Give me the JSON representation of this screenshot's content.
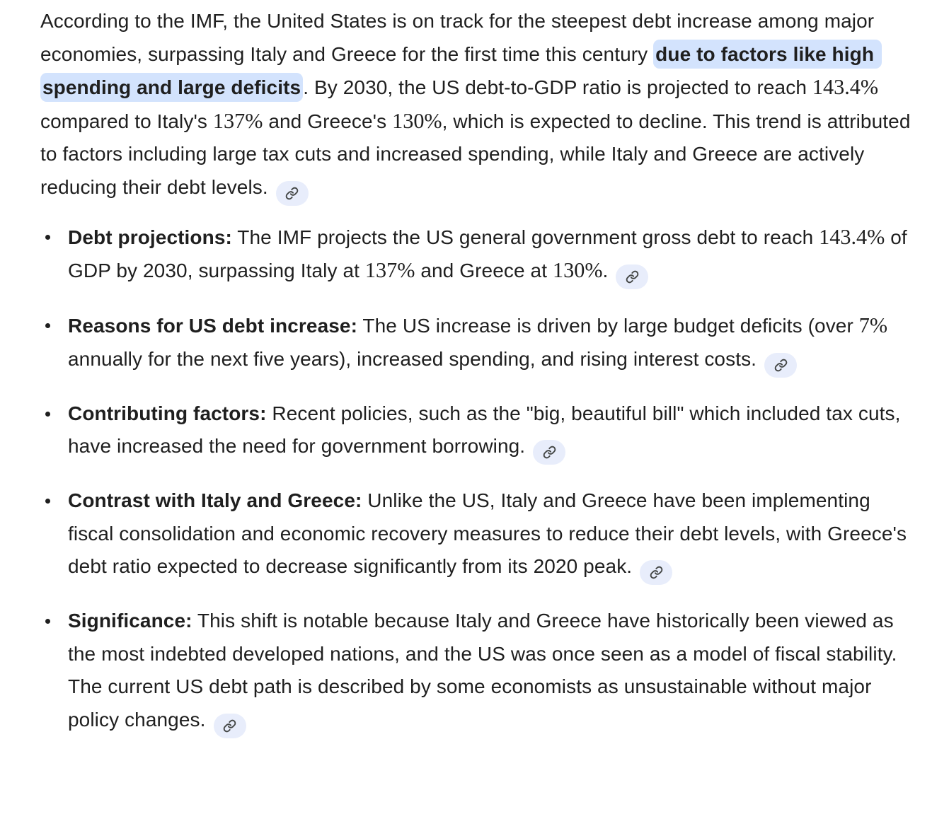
{
  "theme": {
    "background": "#ffffff",
    "text_color": "#1f1f1f",
    "highlight_bg": "#d3e3fd",
    "citation_bg": "#e8edfb",
    "citation_icon_color": "#444746",
    "bullet_color": "#1f1f1f"
  },
  "icons": {
    "citation": "link-icon"
  },
  "intro": {
    "segments": [
      {
        "t": "text",
        "s": "According to the IMF, the United States is on track for the steepest debt increase among major economies, surpassing Italy and Greece for the first time this century "
      },
      {
        "t": "highlight",
        "s": "due to factors like high spending and large deficits"
      },
      {
        "t": "text",
        "s": ". By 2030, the US debt-to-GDP ratio is projected to reach "
      },
      {
        "t": "serif",
        "s": "143.4%"
      },
      {
        "t": "text",
        "s": " compared to Italy's "
      },
      {
        "t": "serif",
        "s": "137%"
      },
      {
        "t": "text",
        "s": " and Greece's "
      },
      {
        "t": "serif",
        "s": "130%"
      },
      {
        "t": "text",
        "s": ", which is expected to decline. This trend is attributed to factors including large tax cuts and increased spending, while Italy and Greece are actively reducing their debt levels."
      }
    ]
  },
  "bullets": [
    {
      "segments": [
        {
          "t": "bold",
          "s": "Debt projections:"
        },
        {
          "t": "text",
          "s": " The IMF projects the US general government gross debt to reach "
        },
        {
          "t": "serif",
          "s": "143.4%"
        },
        {
          "t": "text",
          "s": " of GDP by 2030, surpassing Italy at "
        },
        {
          "t": "serif",
          "s": "137%"
        },
        {
          "t": "text",
          "s": " and Greece at "
        },
        {
          "t": "serif",
          "s": "130%"
        },
        {
          "t": "text",
          "s": "."
        }
      ]
    },
    {
      "segments": [
        {
          "t": "bold",
          "s": "Reasons for US debt increase:"
        },
        {
          "t": "text",
          "s": " The US increase is driven by large budget deficits (over "
        },
        {
          "t": "serif",
          "s": "7%"
        },
        {
          "t": "text",
          "s": " annually for the next five years), increased spending, and rising interest costs."
        }
      ]
    },
    {
      "segments": [
        {
          "t": "bold",
          "s": "Contributing factors:"
        },
        {
          "t": "text",
          "s": " Recent policies, such as the \"big, beautiful bill\" which included tax cuts, have increased the need for government borrowing."
        }
      ]
    },
    {
      "segments": [
        {
          "t": "bold",
          "s": "Contrast with Italy and Greece:"
        },
        {
          "t": "text",
          "s": " Unlike the US, Italy and Greece have been implementing fiscal consolidation and economic recovery measures to reduce their debt levels, with Greece's debt ratio expected to decrease significantly from its 2020 peak."
        }
      ]
    },
    {
      "segments": [
        {
          "t": "bold",
          "s": "Significance:"
        },
        {
          "t": "text",
          "s": " This shift is notable because Italy and Greece have historically been viewed as the most indebted developed nations, and the US was once seen as a model of fiscal stability. The current US debt path is described by some economists as unsustainable without major policy changes."
        }
      ]
    }
  ]
}
